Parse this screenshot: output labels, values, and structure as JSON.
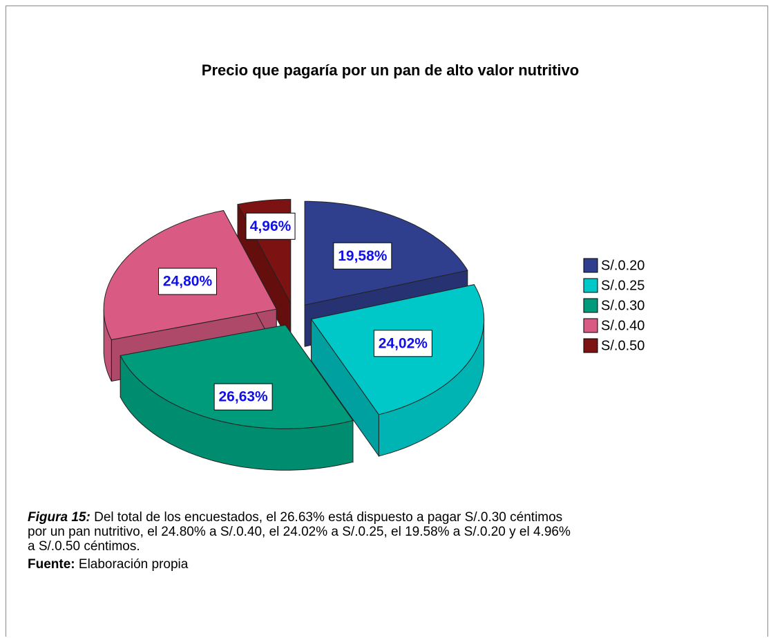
{
  "chart_data": {
    "type": "pie",
    "title": "Precio que pagaría por un pan de alto valor nutritivo",
    "categories": [
      "S/.0.20",
      "S/.0.25",
      "S/.0.30",
      "S/.0.40",
      "S/.0.50"
    ],
    "values": [
      19.58,
      24.02,
      26.63,
      24.8,
      4.96
    ],
    "value_labels": [
      "19,58%",
      "24,02%",
      "26,63%",
      "24,80%",
      "4,96%"
    ],
    "colors": [
      "#2f3f8e",
      "#00c8c8",
      "#009b7a",
      "#d95b84",
      "#7d1212"
    ],
    "legend": "right"
  },
  "caption": {
    "label": "Figura 15:",
    "text": "Del total de los encuestados, el 26.63% está dispuesto a pagar S/.0.30 céntimos por un pan nutritivo, el 24.80% a S/.0.40, el 24.02% a S/.0.25, el 19.58% a S/.0.20 y el 4.96% a S/.0.50 céntimos."
  },
  "source": {
    "label": "Fuente:",
    "text": "Elaboración propia"
  }
}
